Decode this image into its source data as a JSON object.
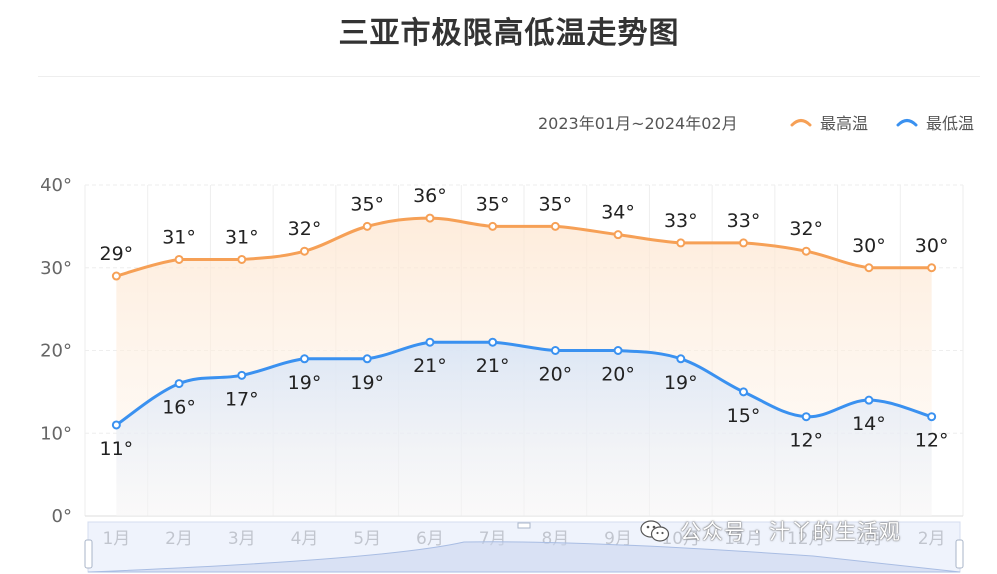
{
  "title": "三亚市极限高低温走势图",
  "date_range": "2023年01月~2024年02月",
  "watermark": "公众号 · 汁丫的生活观",
  "colors": {
    "high": "#f6a056",
    "low": "#3a91f0",
    "grid": "#eeeeee",
    "axis_text": "#666666"
  },
  "chart_data": {
    "type": "line",
    "title": "三亚市极限高低温走势图",
    "categories": [
      "1月",
      "2月",
      "3月",
      "4月",
      "5月",
      "6月",
      "7月",
      "8月",
      "9月",
      "10月",
      "11月",
      "12月",
      "1月",
      "2月"
    ],
    "series": [
      {
        "name": "最高温",
        "values": [
          29,
          31,
          31,
          32,
          35,
          36,
          35,
          35,
          34,
          33,
          33,
          32,
          30,
          30
        ]
      },
      {
        "name": "最低温",
        "values": [
          11,
          16,
          17,
          19,
          19,
          21,
          21,
          20,
          20,
          19,
          15,
          12,
          14,
          12
        ]
      }
    ],
    "y_ticks": [
      "0°",
      "10°",
      "20°",
      "30°",
      "40°"
    ],
    "ylim": [
      0,
      40
    ],
    "label_suffix": "°",
    "legend_position": "top-right",
    "grid": true
  }
}
